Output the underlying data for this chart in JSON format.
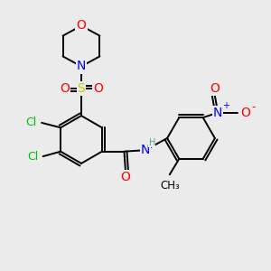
{
  "background_color": "#ebebeb",
  "atom_colors": {
    "C": "#000000",
    "H": "#6a9a9a",
    "N": "#0000ff",
    "O": "#ff0000",
    "S": "#cccc00",
    "Cl": "#00bb00"
  },
  "bond_color": "#000000",
  "figsize": [
    3.0,
    3.0
  ],
  "dpi": 100
}
